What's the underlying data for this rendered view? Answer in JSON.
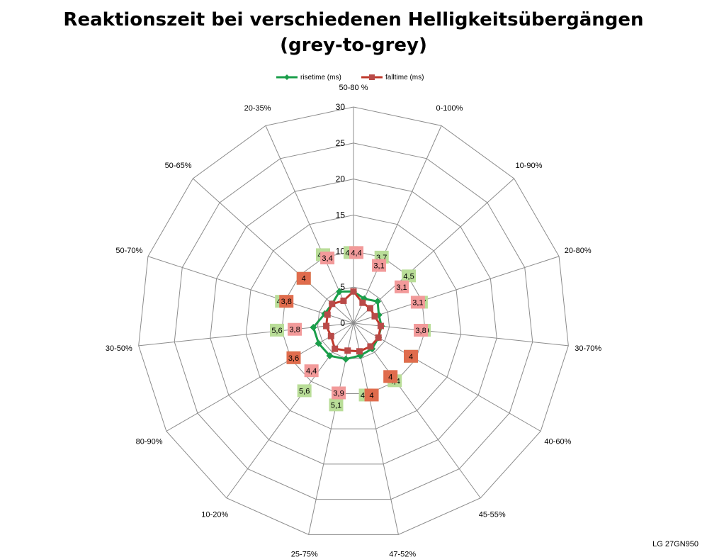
{
  "chart_data": {
    "type": "radar",
    "title_lines": [
      "Reaktionszeit bei verschiedenen Helligkeitsübergängen",
      "(grey-to-grey)"
    ],
    "categories": [
      "50-80 %",
      "0-100%",
      "10-90%",
      "20-80%",
      "30-70%",
      "40-60%",
      "45-55%",
      "47-52%",
      "25-75%",
      "10-20%",
      "80-90%",
      "30-50%",
      "50-70%",
      "50-65%",
      "20-35%"
    ],
    "r_ticks": [
      0,
      5,
      10,
      15,
      20,
      25,
      30
    ],
    "rlim": [
      0,
      30
    ],
    "grid": true,
    "legend_position": "top-center",
    "series": [
      {
        "name": "risetime (ms)",
        "color": "#1a9e4a",
        "label_bg": "#b9dd98",
        "marker": "diamond",
        "values": [
          4.4,
          3.7,
          4.5,
          3.7,
          3.9,
          4.0,
          4.4,
          4.6,
          5.1,
          5.6,
          5.6,
          5.6,
          4.2,
          4.0,
          4.8
        ],
        "labels": [
          "4,4",
          "3,7",
          "4,5",
          "3,7",
          "3,9",
          "4",
          "4,4",
          "4,6",
          "5,1",
          "5,6",
          "5,6",
          "5,6",
          "4,2",
          "4",
          "4,8"
        ]
      },
      {
        "name": "falltime (ms)",
        "color": "#c0392b",
        "label_bg": "#f29a9a",
        "marker": "square",
        "values": [
          4.4,
          3.1,
          3.1,
          3.1,
          3.8,
          4.0,
          4.0,
          4.0,
          3.9,
          4.4,
          3.6,
          3.8,
          3.8,
          4.0,
          3.4
        ],
        "labels": [
          "4,4",
          "3,1",
          "3,1",
          "3,1",
          "3,8",
          "4",
          "4",
          "4",
          "3,9",
          "4,4",
          "3,6",
          "3,8",
          "3,8",
          "4",
          "3,4"
        ]
      }
    ]
  },
  "footer": {
    "monitor": "LG 27GN950"
  }
}
